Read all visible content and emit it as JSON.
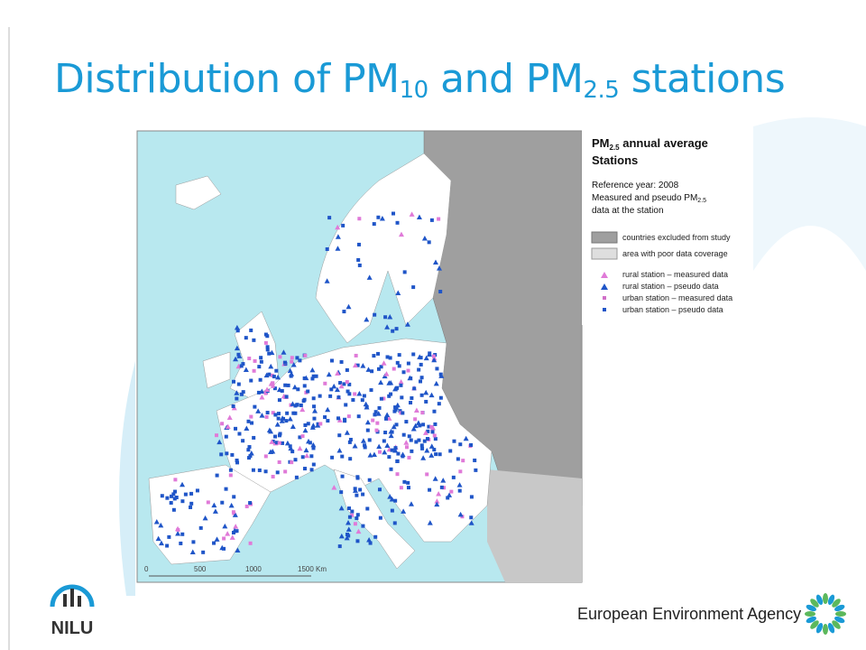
{
  "title": {
    "part1": "Distribution of PM",
    "sub1": "10",
    "part2": " and PM",
    "sub2": "2.5",
    "part3": " stations"
  },
  "legend": {
    "heading": "PM",
    "heading_sub": "2.5",
    "heading_rest": " annual average",
    "heading2": "Stations",
    "ref": "Reference year: 2008",
    "desc1": "Measured and pseudo PM",
    "desc1_sub": "2.5",
    "desc2": "data at the station",
    "areas": [
      "countries excluded from study",
      "area with poor data coverage"
    ],
    "stations": [
      "rural station – measured data",
      "rural station – pseudo data",
      "urban station – measured data",
      "urban station – pseudo data"
    ]
  },
  "scale": [
    "0",
    "500",
    "1000",
    "1500 Km"
  ],
  "footer": {
    "agency": "European Environment Agency",
    "logo": "NILU"
  }
}
